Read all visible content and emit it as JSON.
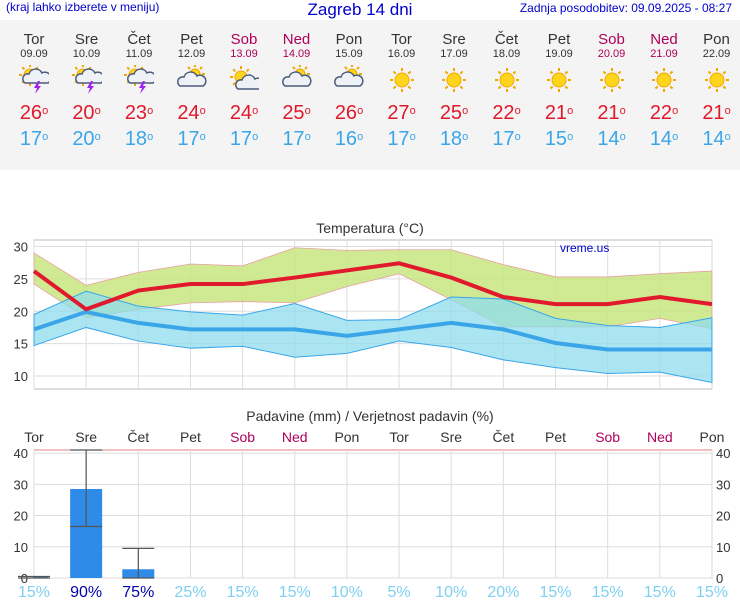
{
  "header": {
    "left_note": "(kraj lahko izberete v meniju)",
    "title": "Zagreb 14 dni",
    "updated": "Zadnja posodobitev: 09.09.2025 - 08:27"
  },
  "days": [
    {
      "name": "Tor",
      "date": "09.09",
      "icon": "sun-cloud-lightning-icon",
      "max": "26",
      "min": "17",
      "weekend": false
    },
    {
      "name": "Sre",
      "date": "10.09",
      "icon": "sun-cloud-lightning-icon",
      "max": "20",
      "min": "20",
      "weekend": false
    },
    {
      "name": "Čet",
      "date": "11.09",
      "icon": "sun-cloud-lightning-icon",
      "max": "23",
      "min": "18",
      "weekend": false
    },
    {
      "name": "Pet",
      "date": "12.09",
      "icon": "sun-cloud-icon",
      "max": "24",
      "min": "17",
      "weekend": false
    },
    {
      "name": "Sob",
      "date": "13.09",
      "icon": "sun-small-cloud-icon",
      "max": "24",
      "min": "17",
      "weekend": true
    },
    {
      "name": "Ned",
      "date": "14.09",
      "icon": "sun-cloud-icon",
      "max": "25",
      "min": "17",
      "weekend": true
    },
    {
      "name": "Pon",
      "date": "15.09",
      "icon": "sun-cloud-icon",
      "max": "26",
      "min": "16",
      "weekend": false
    },
    {
      "name": "Tor",
      "date": "16.09",
      "icon": "sun-icon",
      "max": "27",
      "min": "17",
      "weekend": false
    },
    {
      "name": "Sre",
      "date": "17.09",
      "icon": "sun-icon",
      "max": "25",
      "min": "18",
      "weekend": false
    },
    {
      "name": "Čet",
      "date": "18.09",
      "icon": "sun-icon",
      "max": "22",
      "min": "17",
      "weekend": false
    },
    {
      "name": "Pet",
      "date": "19.09",
      "icon": "sun-icon",
      "max": "21",
      "min": "15",
      "weekend": false
    },
    {
      "name": "Sob",
      "date": "20.09",
      "icon": "sun-icon",
      "max": "21",
      "min": "14",
      "weekend": true
    },
    {
      "name": "Ned",
      "date": "21.09",
      "icon": "sun-icon",
      "max": "22",
      "min": "14",
      "weekend": true
    },
    {
      "name": "Pon",
      "date": "22.09",
      "icon": "sun-icon",
      "max": "21",
      "min": "14",
      "weekend": false
    }
  ],
  "colors": {
    "max_temp": "#e01a2c",
    "min_temp": "#3aa6e8",
    "max_band": "#c8e680",
    "min_band": "#8fdcee",
    "overlap_band": "#7cd08a",
    "precip_bar": "#2e8be8",
    "weekend": "#b0005a",
    "precip_prob_high": "#0000aa",
    "precip_prob_low": "#7fd0f0"
  },
  "chart_data": [
    {
      "type": "line",
      "title": "Temperatura (°C)",
      "watermark": "vreme.us",
      "ylim": [
        8,
        31
      ],
      "yticks": [
        10,
        15,
        20,
        25,
        30
      ],
      "grid": true,
      "x": [
        0,
        1,
        2,
        3,
        4,
        5,
        6,
        7,
        8,
        9,
        10,
        11,
        12,
        13
      ],
      "series": [
        {
          "key": "max",
          "values": [
            26.2,
            20.3,
            23.2,
            24.2,
            24.2,
            25.2,
            26.3,
            27.4,
            25.2,
            22.2,
            21.1,
            21.1,
            22.2,
            21.1
          ]
        },
        {
          "key": "min",
          "values": [
            17.2,
            19.9,
            18.2,
            17.2,
            17.2,
            17.2,
            16.2,
            17.2,
            18.2,
            17.2,
            15.1,
            14.1,
            14.1,
            14.1
          ]
        },
        {
          "key": "max_upper",
          "values": [
            29,
            24,
            26,
            27.3,
            27,
            29.8,
            29.4,
            29.5,
            29.5,
            27.2,
            25.3,
            25.3,
            25.8,
            26.2
          ]
        },
        {
          "key": "max_lower",
          "values": [
            24.2,
            19,
            20.3,
            21.3,
            21.5,
            21.3,
            23.8,
            25.8,
            21.8,
            17.6,
            17.6,
            17.6,
            18.9,
            17.3
          ]
        },
        {
          "key": "min_upper",
          "values": [
            19.5,
            23.1,
            20.8,
            19.9,
            19.4,
            21.2,
            18.6,
            18.7,
            22.2,
            21.9,
            18.9,
            17.8,
            17.5,
            19
          ]
        },
        {
          "key": "min_lower",
          "values": [
            14.7,
            17.5,
            15.4,
            14.3,
            14.6,
            12.9,
            13.5,
            15.4,
            14.4,
            12.5,
            11.3,
            10.4,
            10.6,
            9
          ]
        }
      ]
    },
    {
      "type": "bar",
      "title": "Padavine (mm) / Verjetnost padavin (%)",
      "ylim": [
        0,
        41
      ],
      "yticks": [
        0,
        10,
        20,
        30,
        40
      ],
      "grid": true,
      "categories": [
        "Tor",
        "Sre",
        "Čet",
        "Pet",
        "Sob",
        "Ned",
        "Pon",
        "Tor",
        "Sre",
        "Čet",
        "Pet",
        "Sob",
        "Ned",
        "Pon"
      ],
      "weekend": [
        false,
        false,
        false,
        false,
        true,
        true,
        false,
        false,
        false,
        false,
        false,
        true,
        true,
        false
      ],
      "values": [
        0.4,
        28.5,
        2.8,
        0,
        0,
        0,
        0,
        0,
        0,
        0,
        0,
        0,
        0,
        0
      ],
      "error_high": [
        0.5,
        41,
        9.5,
        null,
        null,
        null,
        null,
        null,
        null,
        null,
        null,
        null,
        null,
        null
      ],
      "error_low": [
        0,
        16.5,
        0,
        null,
        null,
        null,
        null,
        null,
        null,
        null,
        null,
        null,
        null,
        null
      ],
      "probability": [
        "15%",
        "90%",
        "75%",
        "25%",
        "15%",
        "15%",
        "10%",
        "5%",
        "10%",
        "20%",
        "15%",
        "15%",
        "15%",
        "15%"
      ],
      "probability_values": [
        15,
        90,
        75,
        25,
        15,
        15,
        10,
        5,
        10,
        20,
        15,
        15,
        15,
        15
      ]
    }
  ]
}
